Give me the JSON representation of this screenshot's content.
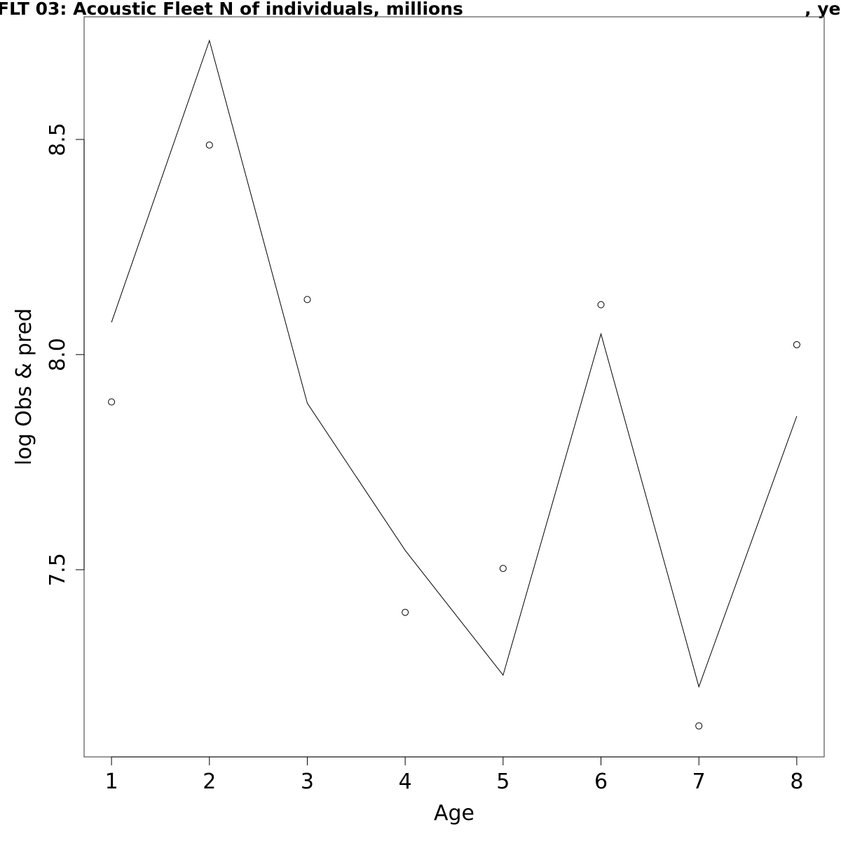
{
  "chart_data": {
    "type": "line",
    "title": "FLT 03: Acoustic Fleet   N of individuals, millions",
    "title_suffix": ", yea",
    "xlabel": "Age",
    "ylabel": "log Obs & pred",
    "x": [
      1,
      2,
      3,
      4,
      5,
      6,
      7,
      8
    ],
    "x_tick_labels": [
      "1",
      "2",
      "3",
      "4",
      "5",
      "6",
      "7",
      "8"
    ],
    "y_ticks": [
      7.5,
      8.0,
      8.5
    ],
    "y_tick_labels": [
      "7.5",
      "8.0",
      "8.5"
    ],
    "xlim": [
      0.72,
      8.28
    ],
    "ylim": [
      7.065,
      8.785
    ],
    "grid": false,
    "legend": "none",
    "series": [
      {
        "values": [
          8.075,
          8.73,
          7.887,
          7.545,
          7.255,
          8.048,
          7.228,
          7.857
        ],
        "style": "line"
      },
      {
        "values": [
          7.89,
          8.487,
          8.128,
          7.401,
          7.503,
          8.116,
          7.137,
          8.023
        ],
        "style": "points"
      }
    ]
  }
}
